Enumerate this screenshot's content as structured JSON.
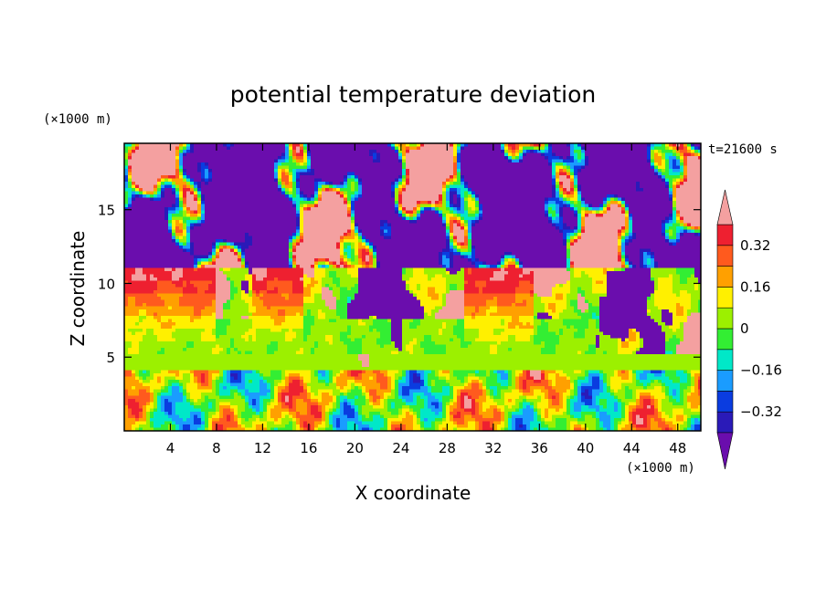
{
  "chart_data": {
    "type": "heatmap",
    "title": "potential temperature deviation",
    "xlabel": "X coordinate",
    "ylabel": "Z coordinate",
    "x_unit": "(×1000 m)",
    "y_unit": "(×1000 m)",
    "time_label": "t=21600 s",
    "xlim": [
      0,
      50
    ],
    "ylim": [
      0,
      19.5
    ],
    "x_ticks": [
      4,
      8,
      12,
      16,
      20,
      24,
      28,
      32,
      36,
      40,
      44,
      48
    ],
    "x_tick_labels": [
      "4",
      "8",
      "12",
      "16",
      "20",
      "24",
      "28",
      "32",
      "36",
      "40",
      "44",
      "48"
    ],
    "y_ticks": [
      5,
      10,
      15
    ],
    "y_tick_labels": [
      "5",
      "10",
      "15"
    ],
    "colorbar": {
      "levels": [
        -0.4,
        -0.32,
        -0.24,
        -0.16,
        -0.08,
        0,
        0.08,
        0.16,
        0.24,
        0.32,
        0.4
      ],
      "labels": [
        "0.32",
        "0.16",
        "0",
        "−0.16",
        "−0.32"
      ],
      "label_values": [
        0.32,
        0.16,
        0,
        -0.16,
        -0.32
      ],
      "colors": [
        "#6a0dad",
        "#2a1ab8",
        "#0a3ce0",
        "#1a9cff",
        "#00e8c8",
        "#33ee33",
        "#9cf000",
        "#fff000",
        "#ffa000",
        "#ff5a1e",
        "#ee2030",
        "#f4a0a0"
      ],
      "extend": "both"
    },
    "colors": {
      "above_max": "#f4a0a0",
      "below_min": "#6a0dad"
    }
  }
}
